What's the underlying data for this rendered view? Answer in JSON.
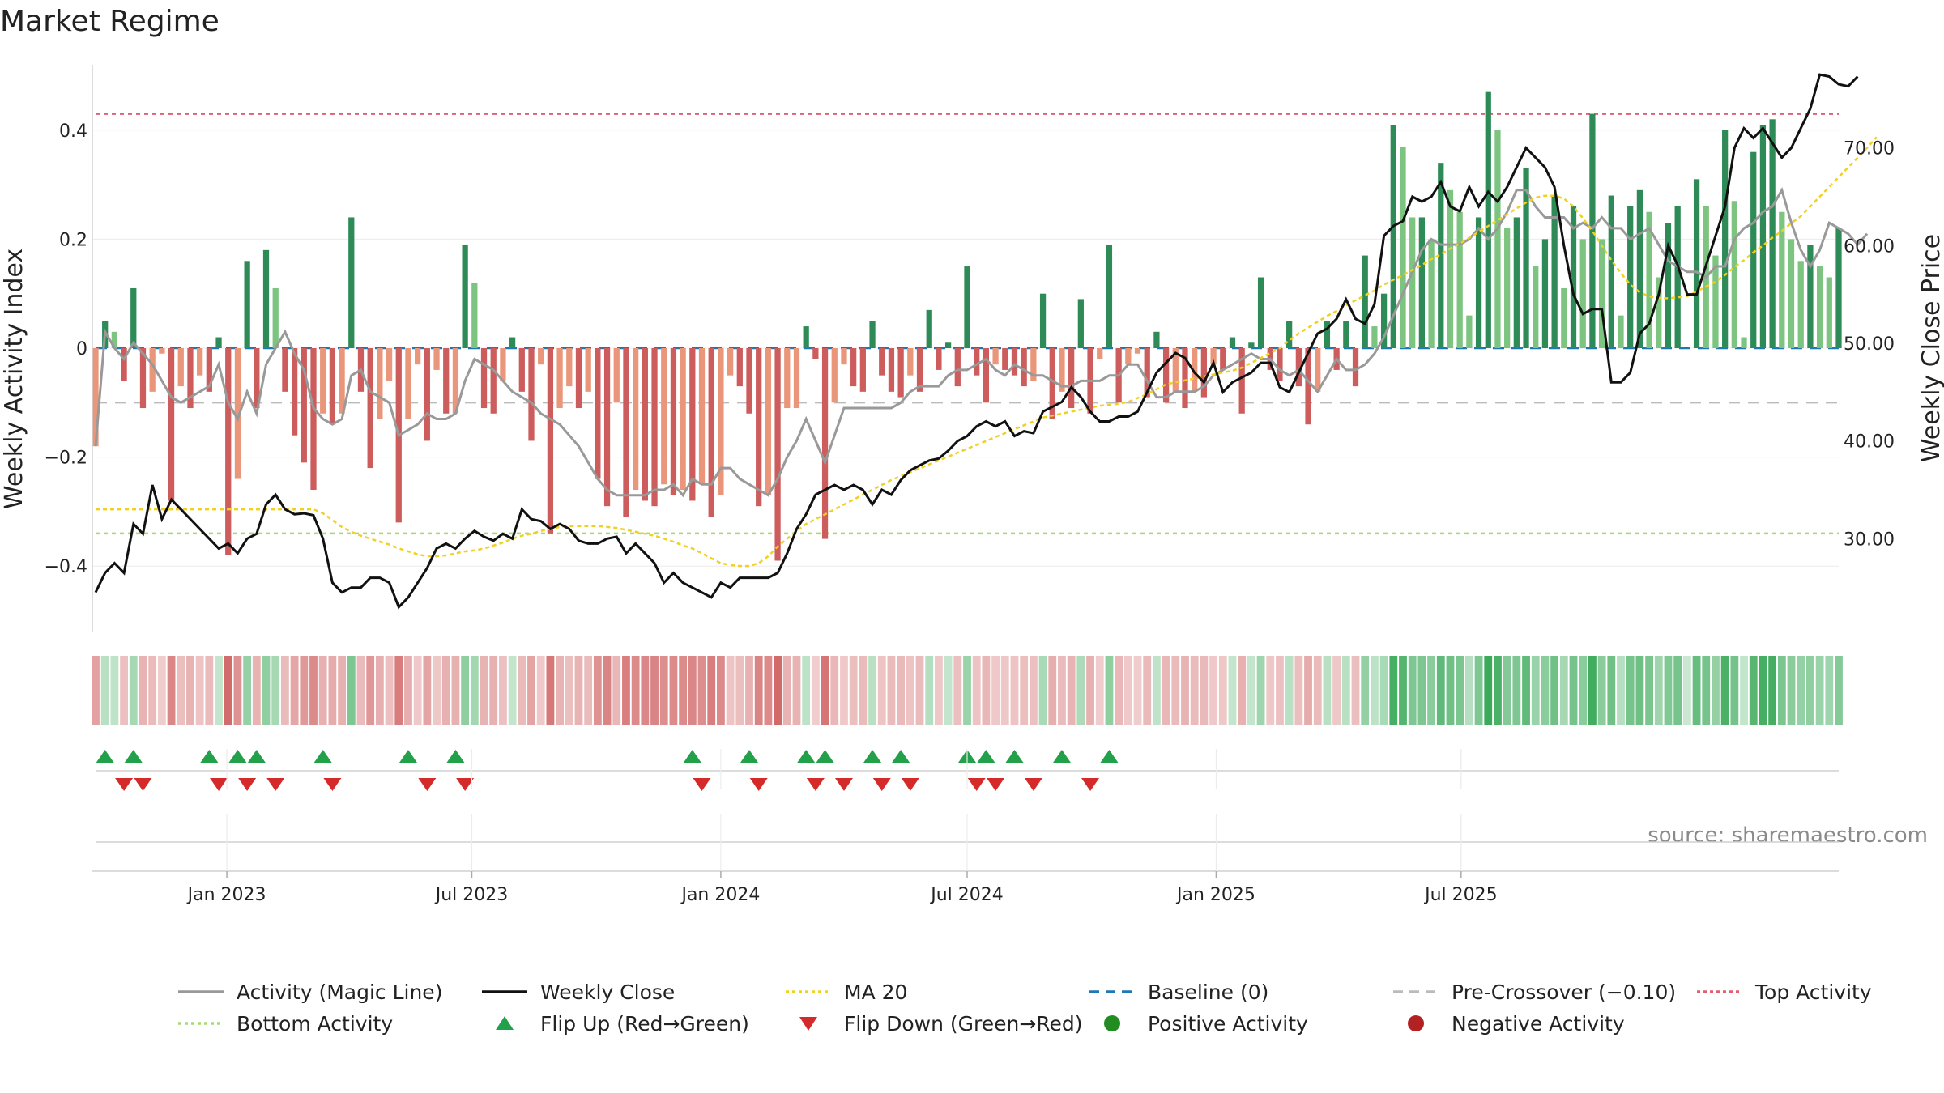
{
  "title": "Market Regime",
  "source": "source: sharemaestro.com",
  "colors": {
    "pos_dark": "#2e8b57",
    "pos_light": "#7cc47f",
    "neg_dark": "#cd5c5c",
    "neg_light": "#e9967a",
    "activity_line": "#999999",
    "close_line": "#111111",
    "ma_line": "#f2d022",
    "baseline": "#1f77b4",
    "pre_cross": "#bbbbbb",
    "top": "#e06070",
    "bottom": "#a8d870",
    "flip_up": "#22a04a",
    "flip_down": "#d42a2a",
    "pos_dot": "#228b22",
    "neg_dot": "#b22222"
  },
  "chart_data": {
    "type": "bar",
    "title": "Market Regime",
    "start_date": "2022-09-26",
    "frequency": "weekly",
    "y_left": {
      "label": "Weekly Activity Index",
      "lim": [
        -0.52,
        0.52
      ],
      "ticks": [
        -0.4,
        -0.2,
        0,
        0.2,
        0.4
      ],
      "tick_labels": [
        "−0.4",
        "−0.2",
        "0",
        "0.2",
        "0.4"
      ]
    },
    "y_right": {
      "label": "Weekly Close Price",
      "lim": [
        20.5,
        78.5
      ],
      "ticks": [
        30,
        40,
        50,
        60,
        70
      ],
      "tick_labels": [
        "30.00",
        "40.00",
        "50.00",
        "60.00",
        "70.00"
      ]
    },
    "x_ticks": [
      {
        "label": "Jan 2023",
        "date": "2023-01-01"
      },
      {
        "label": "Jul 2023",
        "date": "2023-07-01"
      },
      {
        "label": "Jan 2024",
        "date": "2024-01-01"
      },
      {
        "label": "Jul 2024",
        "date": "2024-07-01"
      },
      {
        "label": "Jan 2025",
        "date": "2025-01-01"
      },
      {
        "label": "Jul 2025",
        "date": "2025-07-01"
      }
    ],
    "thresholds": {
      "top": 0.43,
      "bottom": -0.34,
      "pre_crossover": -0.1,
      "baseline": 0
    },
    "activity": [
      -0.18,
      0.05,
      0.03,
      -0.06,
      0.11,
      -0.11,
      -0.08,
      -0.01,
      -0.28,
      -0.07,
      -0.11,
      -0.05,
      -0.08,
      0.02,
      -0.38,
      -0.24,
      0.16,
      -0.11,
      0.18,
      0.11,
      -0.08,
      -0.16,
      -0.21,
      -0.26,
      -0.12,
      -0.14,
      -0.12,
      0.24,
      -0.08,
      -0.22,
      -0.13,
      -0.06,
      -0.32,
      -0.13,
      -0.03,
      -0.17,
      -0.04,
      -0.12,
      -0.12,
      0.19,
      0.12,
      -0.11,
      -0.12,
      -0.06,
      0.02,
      -0.08,
      -0.17,
      -0.03,
      -0.34,
      -0.11,
      -0.07,
      -0.11,
      -0.08,
      -0.24,
      -0.29,
      -0.1,
      -0.31,
      -0.26,
      -0.28,
      -0.29,
      -0.25,
      -0.27,
      -0.26,
      -0.28,
      -0.25,
      -0.31,
      -0.27,
      -0.05,
      -0.07,
      -0.12,
      -0.29,
      -0.27,
      -0.39,
      -0.11,
      -0.11,
      0.04,
      -0.02,
      -0.35,
      -0.1,
      -0.03,
      -0.07,
      -0.08,
      0.05,
      -0.05,
      -0.08,
      -0.09,
      -0.05,
      -0.08,
      0.07,
      -0.04,
      0.01,
      -0.07,
      0.15,
      -0.05,
      -0.1,
      -0.03,
      -0.04,
      -0.05,
      -0.07,
      -0.06,
      0.1,
      -0.13,
      -0.08,
      -0.11,
      0.09,
      -0.12,
      -0.02,
      0.19,
      -0.1,
      -0.03,
      -0.01,
      -0.09,
      0.03,
      -0.1,
      -0.08,
      -0.11,
      -0.08,
      -0.09,
      -0.03,
      -0.04,
      0.02,
      -0.12,
      0.01,
      0.13,
      -0.04,
      -0.06,
      0.05,
      -0.07,
      -0.14,
      -0.08,
      0.05,
      -0.04,
      0.05,
      -0.07,
      0.17,
      0.04,
      0.1,
      0.41,
      0.37,
      0.24,
      0.24,
      0.2,
      0.34,
      0.29,
      0.25,
      0.06,
      0.24,
      0.47,
      0.4,
      0.22,
      0.24,
      0.33,
      0.15,
      0.2,
      0.28,
      0.11,
      0.26,
      0.2,
      0.43,
      0.2,
      0.28,
      0.06,
      0.26,
      0.29,
      0.25,
      0.13,
      0.23,
      0.26,
      0.0,
      0.31,
      0.26,
      0.17,
      0.4,
      0.27,
      0.02,
      0.36,
      0.41,
      0.42,
      0.25,
      0.2,
      0.16,
      0.19,
      0.15,
      0.13,
      0.22
    ],
    "activity_ma": [
      -0.18,
      0.03,
      0.0,
      -0.02,
      0.01,
      -0.01,
      -0.03,
      -0.06,
      -0.09,
      -0.1,
      -0.09,
      -0.08,
      -0.07,
      -0.03,
      -0.1,
      -0.13,
      -0.08,
      -0.12,
      -0.03,
      0.0,
      0.03,
      -0.01,
      -0.04,
      -0.11,
      -0.13,
      -0.14,
      -0.13,
      -0.05,
      -0.04,
      -0.08,
      -0.09,
      -0.1,
      -0.16,
      -0.15,
      -0.14,
      -0.12,
      -0.13,
      -0.13,
      -0.12,
      -0.06,
      -0.02,
      -0.03,
      -0.04,
      -0.06,
      -0.08,
      -0.09,
      -0.1,
      -0.12,
      -0.13,
      -0.14,
      -0.16,
      -0.18,
      -0.21,
      -0.24,
      -0.26,
      -0.27,
      -0.27,
      -0.27,
      -0.27,
      -0.26,
      -0.26,
      -0.25,
      -0.27,
      -0.24,
      -0.25,
      -0.25,
      -0.22,
      -0.22,
      -0.24,
      -0.25,
      -0.26,
      -0.27,
      -0.24,
      -0.2,
      -0.17,
      -0.13,
      -0.17,
      -0.21,
      -0.16,
      -0.11,
      -0.11,
      -0.11,
      -0.11,
      -0.11,
      -0.11,
      -0.1,
      -0.08,
      -0.07,
      -0.07,
      -0.07,
      -0.05,
      -0.04,
      -0.04,
      -0.03,
      -0.02,
      -0.04,
      -0.05,
      -0.03,
      -0.04,
      -0.05,
      -0.05,
      -0.06,
      -0.07,
      -0.07,
      -0.06,
      -0.06,
      -0.06,
      -0.05,
      -0.05,
      -0.03,
      -0.03,
      -0.06,
      -0.09,
      -0.09,
      -0.08,
      -0.08,
      -0.08,
      -0.07,
      -0.05,
      -0.04,
      -0.03,
      -0.02,
      -0.01,
      -0.02,
      -0.02,
      -0.04,
      -0.05,
      -0.04,
      -0.06,
      -0.08,
      -0.05,
      -0.02,
      -0.04,
      -0.04,
      -0.03,
      -0.01,
      0.02,
      0.06,
      0.1,
      0.14,
      0.18,
      0.2,
      0.19,
      0.19,
      0.19,
      0.2,
      0.22,
      0.2,
      0.22,
      0.25,
      0.29,
      0.29,
      0.26,
      0.24,
      0.24,
      0.24,
      0.22,
      0.23,
      0.22,
      0.24,
      0.22,
      0.22,
      0.2,
      0.21,
      0.22,
      0.19,
      0.16,
      0.15,
      0.14,
      0.14,
      0.13,
      0.15,
      0.15,
      0.2,
      0.22,
      0.23,
      0.25,
      0.26,
      0.29,
      0.23,
      0.18,
      0.15,
      0.18,
      0.23,
      0.22,
      0.21,
      0.19,
      0.21
    ],
    "close": [
      24.5,
      26.5,
      27.5,
      26.5,
      31.5,
      30.5,
      35.5,
      32.0,
      34.0,
      33.0,
      32.0,
      31.0,
      30.0,
      29.0,
      29.5,
      28.5,
      30.0,
      30.5,
      33.5,
      34.5,
      33.0,
      32.5,
      32.6,
      32.4,
      30.0,
      25.5,
      24.5,
      25.0,
      25.0,
      26.0,
      26.0,
      25.5,
      23.0,
      24.0,
      25.5,
      27.0,
      29.0,
      29.5,
      29.0,
      30.0,
      30.8,
      30.2,
      29.8,
      30.5,
      30.0,
      33.0,
      32.0,
      31.8,
      31.0,
      31.5,
      31.0,
      29.8,
      29.5,
      29.5,
      30.0,
      30.2,
      28.5,
      29.5,
      28.5,
      27.5,
      25.5,
      26.5,
      25.5,
      25.0,
      24.5,
      24.0,
      25.5,
      25.0,
      26.0,
      26.0,
      26.0,
      26.0,
      26.5,
      28.5,
      31.0,
      32.5,
      34.5,
      35.0,
      35.5,
      35.0,
      35.5,
      35.0,
      33.5,
      35.0,
      34.5,
      36.0,
      37.0,
      37.5,
      38.0,
      38.2,
      39.0,
      40.0,
      40.5,
      41.5,
      42.0,
      41.5,
      42.0,
      40.5,
      41.0,
      40.8,
      43.0,
      43.5,
      44.0,
      45.5,
      44.5,
      43.0,
      42.0,
      42.0,
      42.5,
      42.5,
      43.0,
      45.0,
      47.0,
      48.0,
      49.0,
      48.5,
      47.0,
      46.0,
      48.0,
      45.0,
      46.0,
      46.5,
      47.0,
      48.0,
      48.0,
      45.5,
      45.0,
      47.0,
      49.0,
      51.0,
      51.5,
      52.5,
      54.5,
      52.5,
      52.0,
      54.0,
      61.0,
      62.0,
      62.5,
      65.0,
      64.5,
      65.0,
      66.5,
      64.0,
      63.5,
      66.0,
      64.0,
      65.5,
      64.5,
      66.0,
      68.0,
      70.0,
      69.0,
      68.0,
      66.0,
      60.0,
      55.0,
      53.0,
      53.5,
      53.5,
      46.0,
      46.0,
      47.0,
      51.0,
      52.0,
      55.0,
      60.0,
      58.0,
      55.0,
      55.0,
      58.0,
      61.0,
      64.0,
      70.0,
      72.0,
      71.0,
      72.0,
      70.5,
      69.0,
      70.0,
      72.0,
      74.0,
      77.5,
      77.3,
      76.5,
      76.3,
      77.3
    ],
    "close_ma20": [
      33.0,
      33.0,
      33.0,
      33.0,
      33.0,
      33.0,
      33.0,
      33.0,
      33.0,
      33.0,
      33.0,
      33.0,
      33.0,
      33.0,
      33.0,
      33.0,
      33.0,
      33.0,
      33.0,
      33.0,
      33.0,
      33.0,
      33.0,
      33.0,
      32.6,
      31.9,
      31.2,
      30.7,
      30.3,
      30.0,
      29.7,
      29.4,
      29.0,
      28.7,
      28.4,
      28.2,
      28.2,
      28.3,
      28.5,
      28.7,
      28.8,
      29.0,
      29.3,
      29.6,
      30.0,
      30.3,
      30.5,
      30.8,
      31.0,
      31.2,
      31.3,
      31.3,
      31.3,
      31.3,
      31.2,
      31.1,
      30.9,
      30.7,
      30.5,
      30.3,
      30.0,
      29.7,
      29.3,
      29.0,
      28.5,
      28.0,
      27.5,
      27.3,
      27.2,
      27.2,
      27.5,
      28.2,
      29.2,
      30.0,
      30.8,
      31.5,
      32.0,
      32.5,
      33.0,
      33.5,
      34.0,
      34.5,
      35.0,
      35.5,
      36.0,
      36.4,
      36.8,
      37.2,
      37.6,
      38.0,
      38.4,
      38.8,
      39.2,
      39.6,
      40.0,
      40.4,
      40.8,
      41.2,
      41.6,
      42.0,
      42.4,
      42.6,
      42.8,
      43.0,
      43.2,
      43.4,
      43.6,
      43.7,
      43.8,
      44.0,
      44.4,
      44.8,
      45.3,
      45.8,
      46.0,
      46.2,
      46.4,
      46.6,
      46.8,
      47.0,
      47.2,
      47.5,
      48.0,
      48.5,
      49.0,
      49.5,
      50.3,
      51.0,
      51.6,
      52.2,
      52.8,
      53.3,
      53.9,
      54.4,
      54.9,
      55.4,
      56.0,
      56.5,
      57.0,
      57.5,
      58.0,
      58.6,
      59.1,
      59.7,
      60.2,
      60.8,
      61.4,
      62.0,
      62.6,
      63.2,
      63.8,
      64.4,
      64.9,
      65.1,
      65.1,
      64.8,
      64.0,
      62.8,
      61.5,
      60.0,
      58.5,
      57.2,
      56.0,
      55.2,
      54.8,
      54.6,
      54.6,
      54.7,
      54.8,
      55.3,
      55.8,
      56.3,
      57.0,
      57.8,
      58.5,
      59.3,
      60.0,
      60.8,
      61.5,
      62.3,
      63.0,
      64.0,
      65.0,
      66.0,
      67.0,
      68.0,
      69.0,
      70.0,
      71.1
    ],
    "flip_up_weeks": [
      1,
      4,
      12,
      15,
      17,
      24,
      33,
      38,
      63,
      69,
      75,
      77,
      82,
      85,
      92,
      94,
      97,
      102,
      107
    ],
    "flip_down_weeks": [
      3,
      5,
      13,
      16,
      19,
      25,
      35,
      39,
      64,
      70,
      76,
      79,
      83,
      86,
      93,
      95,
      99,
      105
    ]
  },
  "legend": [
    {
      "label": "Activity (Magic Line)",
      "kind": "line",
      "color": "#999999",
      "dash": ""
    },
    {
      "label": "Weekly Close",
      "kind": "line",
      "color": "#111111",
      "dash": ""
    },
    {
      "label": "MA 20",
      "kind": "line",
      "color": "#f2d022",
      "dash": "4,4"
    },
    {
      "label": "Baseline (0)",
      "kind": "line",
      "color": "#1f77b4",
      "dash": "12,8"
    },
    {
      "label": "Pre-Crossover (−0.10)",
      "kind": "line",
      "color": "#bbbbbb",
      "dash": "12,8"
    },
    {
      "label": "Top Activity",
      "kind": "line",
      "color": "#e06070",
      "dash": "4,4"
    },
    {
      "label": "Bottom Activity",
      "kind": "line",
      "color": "#a8d870",
      "dash": "4,4"
    },
    {
      "label": "Flip Up (Red→Green)",
      "kind": "tri-up",
      "color": "#22a04a",
      "dash": ""
    },
    {
      "label": "Flip Down (Green→Red)",
      "kind": "tri-down",
      "color": "#d42a2a",
      "dash": ""
    },
    {
      "label": "Positive Activity",
      "kind": "dot",
      "color": "#228b22",
      "dash": ""
    },
    {
      "label": "Negative Activity",
      "kind": "dot",
      "color": "#b22222",
      "dash": ""
    }
  ]
}
